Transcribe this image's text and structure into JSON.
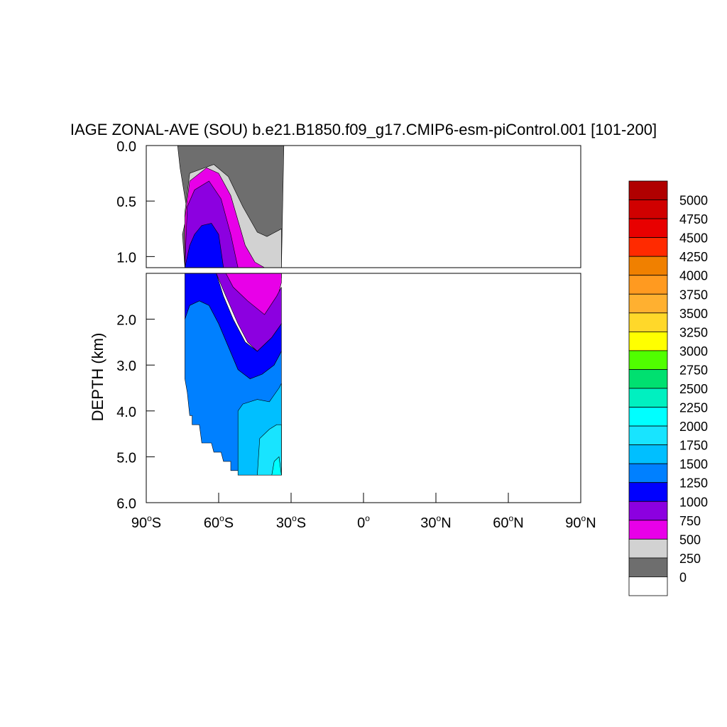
{
  "chart_data": {
    "type": "contour",
    "title": "IAGE ZONAL-AVE (SOU) b.e21.B1850.f09_g17.CMIP6-esm-piControl.001 [101-200]",
    "ylabel": "DEPTH (km)",
    "xlabel": "",
    "x_ticks": [
      {
        "value": -90,
        "deg": "90",
        "hemi": "S"
      },
      {
        "value": -60,
        "deg": "60",
        "hemi": "S"
      },
      {
        "value": -30,
        "deg": "30",
        "hemi": "S"
      },
      {
        "value": 0,
        "deg": "0",
        "hemi": ""
      },
      {
        "value": 30,
        "deg": "30",
        "hemi": "N"
      },
      {
        "value": 60,
        "deg": "60",
        "hemi": "N"
      },
      {
        "value": 90,
        "deg": "90",
        "hemi": "N"
      }
    ],
    "xlim": [
      -90,
      90
    ],
    "upper_panel": {
      "ylim": [
        0.0,
        1.1
      ],
      "y_ticks": [
        "0.0",
        "0.5",
        "1.0"
      ],
      "y_values": [
        0.0,
        0.5,
        1.0
      ]
    },
    "lower_panel": {
      "ylim": [
        1.0,
        6.0
      ],
      "y_ticks": [
        "2.0",
        "3.0",
        "4.0",
        "5.0",
        "6.0"
      ],
      "y_values": [
        2.0,
        3.0,
        4.0,
        5.0,
        6.0
      ]
    },
    "colorbar": {
      "levels": [
        "5000",
        "4750",
        "4500",
        "4250",
        "4000",
        "3750",
        "3500",
        "3250",
        "3000",
        "2750",
        "2500",
        "2250",
        "2000",
        "1750",
        "1500",
        "1250",
        "1000",
        "750",
        "500",
        "250",
        "0"
      ],
      "colors": [
        "#b00000",
        "#d00000",
        "#e80000",
        "#ff2a00",
        "#f08000",
        "#ff9a20",
        "#ffb030",
        "#ffd82a",
        "#ffff00",
        "#50ff00",
        "#00e070",
        "#00f0c0",
        "#00ffff",
        "#18e4ff",
        "#00bfff",
        "#0080ff",
        "#0000ff",
        "#8c00e0",
        "#e800e8",
        "#d2d2d2",
        "#6e6e6e",
        "#ffffff"
      ]
    },
    "series": [
      {
        "level": 0,
        "color": "#6e6e6e",
        "upper": [
          [
            -77,
            0
          ],
          [
            -76,
            0.2
          ],
          [
            -73,
            0.6
          ],
          [
            -75,
            0.8
          ],
          [
            -74,
            1.1
          ],
          [
            -34,
            1.1
          ],
          [
            -33,
            0
          ]
        ]
      },
      {
        "level": 250,
        "color": "#d2d2d2",
        "upper": [
          [
            -74,
            1.1
          ],
          [
            -74,
            0.6
          ],
          [
            -72,
            0.25
          ],
          [
            -62,
            0.17
          ],
          [
            -56,
            0.28
          ],
          [
            -50,
            0.55
          ],
          [
            -44,
            0.78
          ],
          [
            -40,
            0.82
          ],
          [
            -34,
            0.75
          ],
          [
            -34,
            1.1
          ]
        ],
        "lower": [
          [
            -53,
            1.0
          ],
          [
            -48,
            1.2
          ],
          [
            -42,
            1.15
          ],
          [
            -34,
            1.1
          ],
          [
            -34,
            1.0
          ]
        ]
      },
      {
        "level": 500,
        "color": "#e800e8",
        "upper": [
          [
            -74,
            1.1
          ],
          [
            -74,
            0.65
          ],
          [
            -72,
            0.32
          ],
          [
            -65,
            0.2
          ],
          [
            -60,
            0.25
          ],
          [
            -55,
            0.45
          ],
          [
            -49,
            0.9
          ],
          [
            -45,
            1.05
          ],
          [
            -41,
            1.1
          ]
        ],
        "lower": [
          [
            -58,
            1.0
          ],
          [
            -54,
            1.4
          ],
          [
            -48,
            1.8
          ],
          [
            -42,
            2.0
          ],
          [
            -36,
            1.6
          ],
          [
            -34,
            1.2
          ],
          [
            -34,
            1.0
          ]
        ]
      },
      {
        "level": 750,
        "color": "#8c00e0",
        "upper": [
          [
            -74,
            1.1
          ],
          [
            -73,
            0.55
          ],
          [
            -70,
            0.4
          ],
          [
            -64,
            0.32
          ],
          [
            -59,
            0.48
          ],
          [
            -55,
            0.8
          ],
          [
            -52,
            1.1
          ]
        ],
        "lower": [
          [
            -61,
            1.0
          ],
          [
            -57,
            1.5
          ],
          [
            -52,
            2.1
          ],
          [
            -48,
            2.5
          ],
          [
            -44,
            2.7
          ],
          [
            -38,
            2.4
          ],
          [
            -34,
            2.1
          ],
          [
            -34,
            1.3
          ],
          [
            -36,
            1.5
          ],
          [
            -41,
            1.9
          ],
          [
            -48,
            1.6
          ],
          [
            -54,
            1.3
          ],
          [
            -57,
            1.0
          ]
        ]
      },
      {
        "level": 1000,
        "color": "#0000ff",
        "upper": [
          [
            -74,
            1.1
          ],
          [
            -72,
            0.9
          ],
          [
            -70,
            0.8
          ],
          [
            -67,
            0.72
          ],
          [
            -63,
            0.7
          ],
          [
            -60,
            0.8
          ],
          [
            -58,
            1.1
          ]
        ],
        "lower": [
          [
            -74,
            1.0
          ],
          [
            -74,
            2.0
          ],
          [
            -72,
            1.7
          ],
          [
            -68,
            1.6
          ],
          [
            -64,
            1.7
          ],
          [
            -60,
            2.1
          ],
          [
            -56,
            2.6
          ],
          [
            -52,
            3.1
          ],
          [
            -47,
            3.3
          ],
          [
            -42,
            3.2
          ],
          [
            -37,
            3.0
          ],
          [
            -34,
            2.7
          ],
          [
            -34,
            2.1
          ],
          [
            -38,
            2.4
          ],
          [
            -44,
            2.7
          ],
          [
            -49,
            2.5
          ],
          [
            -54,
            2.0
          ],
          [
            -58,
            1.5
          ],
          [
            -61,
            1.0
          ]
        ]
      },
      {
        "level": 1250,
        "color": "#0080ff",
        "lower": [
          [
            -74,
            2.0
          ],
          [
            -72,
            1.7
          ],
          [
            -68,
            1.6
          ],
          [
            -64,
            1.7
          ],
          [
            -60,
            2.1
          ],
          [
            -56,
            2.6
          ],
          [
            -52,
            3.1
          ],
          [
            -47,
            3.3
          ],
          [
            -42,
            3.2
          ],
          [
            -37,
            3.0
          ],
          [
            -34,
            2.7
          ],
          [
            -34,
            5.4
          ],
          [
            -44,
            5.4
          ],
          [
            -44,
            5.1
          ],
          [
            -47,
            5.1
          ],
          [
            -47,
            5.4
          ],
          [
            -50,
            5.4
          ],
          [
            -51,
            5.3
          ],
          [
            -55,
            5.3
          ],
          [
            -55,
            5.1
          ],
          [
            -58,
            5.1
          ],
          [
            -59,
            4.9
          ],
          [
            -62,
            4.9
          ],
          [
            -63,
            4.7
          ],
          [
            -67,
            4.7
          ],
          [
            -68,
            4.3
          ],
          [
            -71,
            4.3
          ],
          [
            -71,
            4.1
          ],
          [
            -72,
            4.1
          ],
          [
            -73,
            3.6
          ],
          [
            -74,
            3.3
          ]
        ]
      },
      {
        "level": 1500,
        "color": "#00bfff",
        "lower": [
          [
            -52,
            5.4
          ],
          [
            -52,
            4.0
          ],
          [
            -50,
            3.85
          ],
          [
            -44,
            3.75
          ],
          [
            -39,
            3.8
          ],
          [
            -35,
            3.5
          ],
          [
            -34,
            3.4
          ],
          [
            -34,
            5.4
          ]
        ]
      },
      {
        "level": 1750,
        "color": "#18e4ff",
        "lower": [
          [
            -44,
            5.4
          ],
          [
            -43,
            4.6
          ],
          [
            -39,
            4.4
          ],
          [
            -36,
            4.3
          ],
          [
            -34,
            4.3
          ],
          [
            -34,
            5.4
          ]
        ]
      },
      {
        "level": 2000,
        "color": "#00ffff",
        "lower": [
          [
            -38,
            5.4
          ],
          [
            -37,
            5.1
          ],
          [
            -35,
            5.0
          ],
          [
            -34,
            5.4
          ]
        ]
      }
    ]
  }
}
